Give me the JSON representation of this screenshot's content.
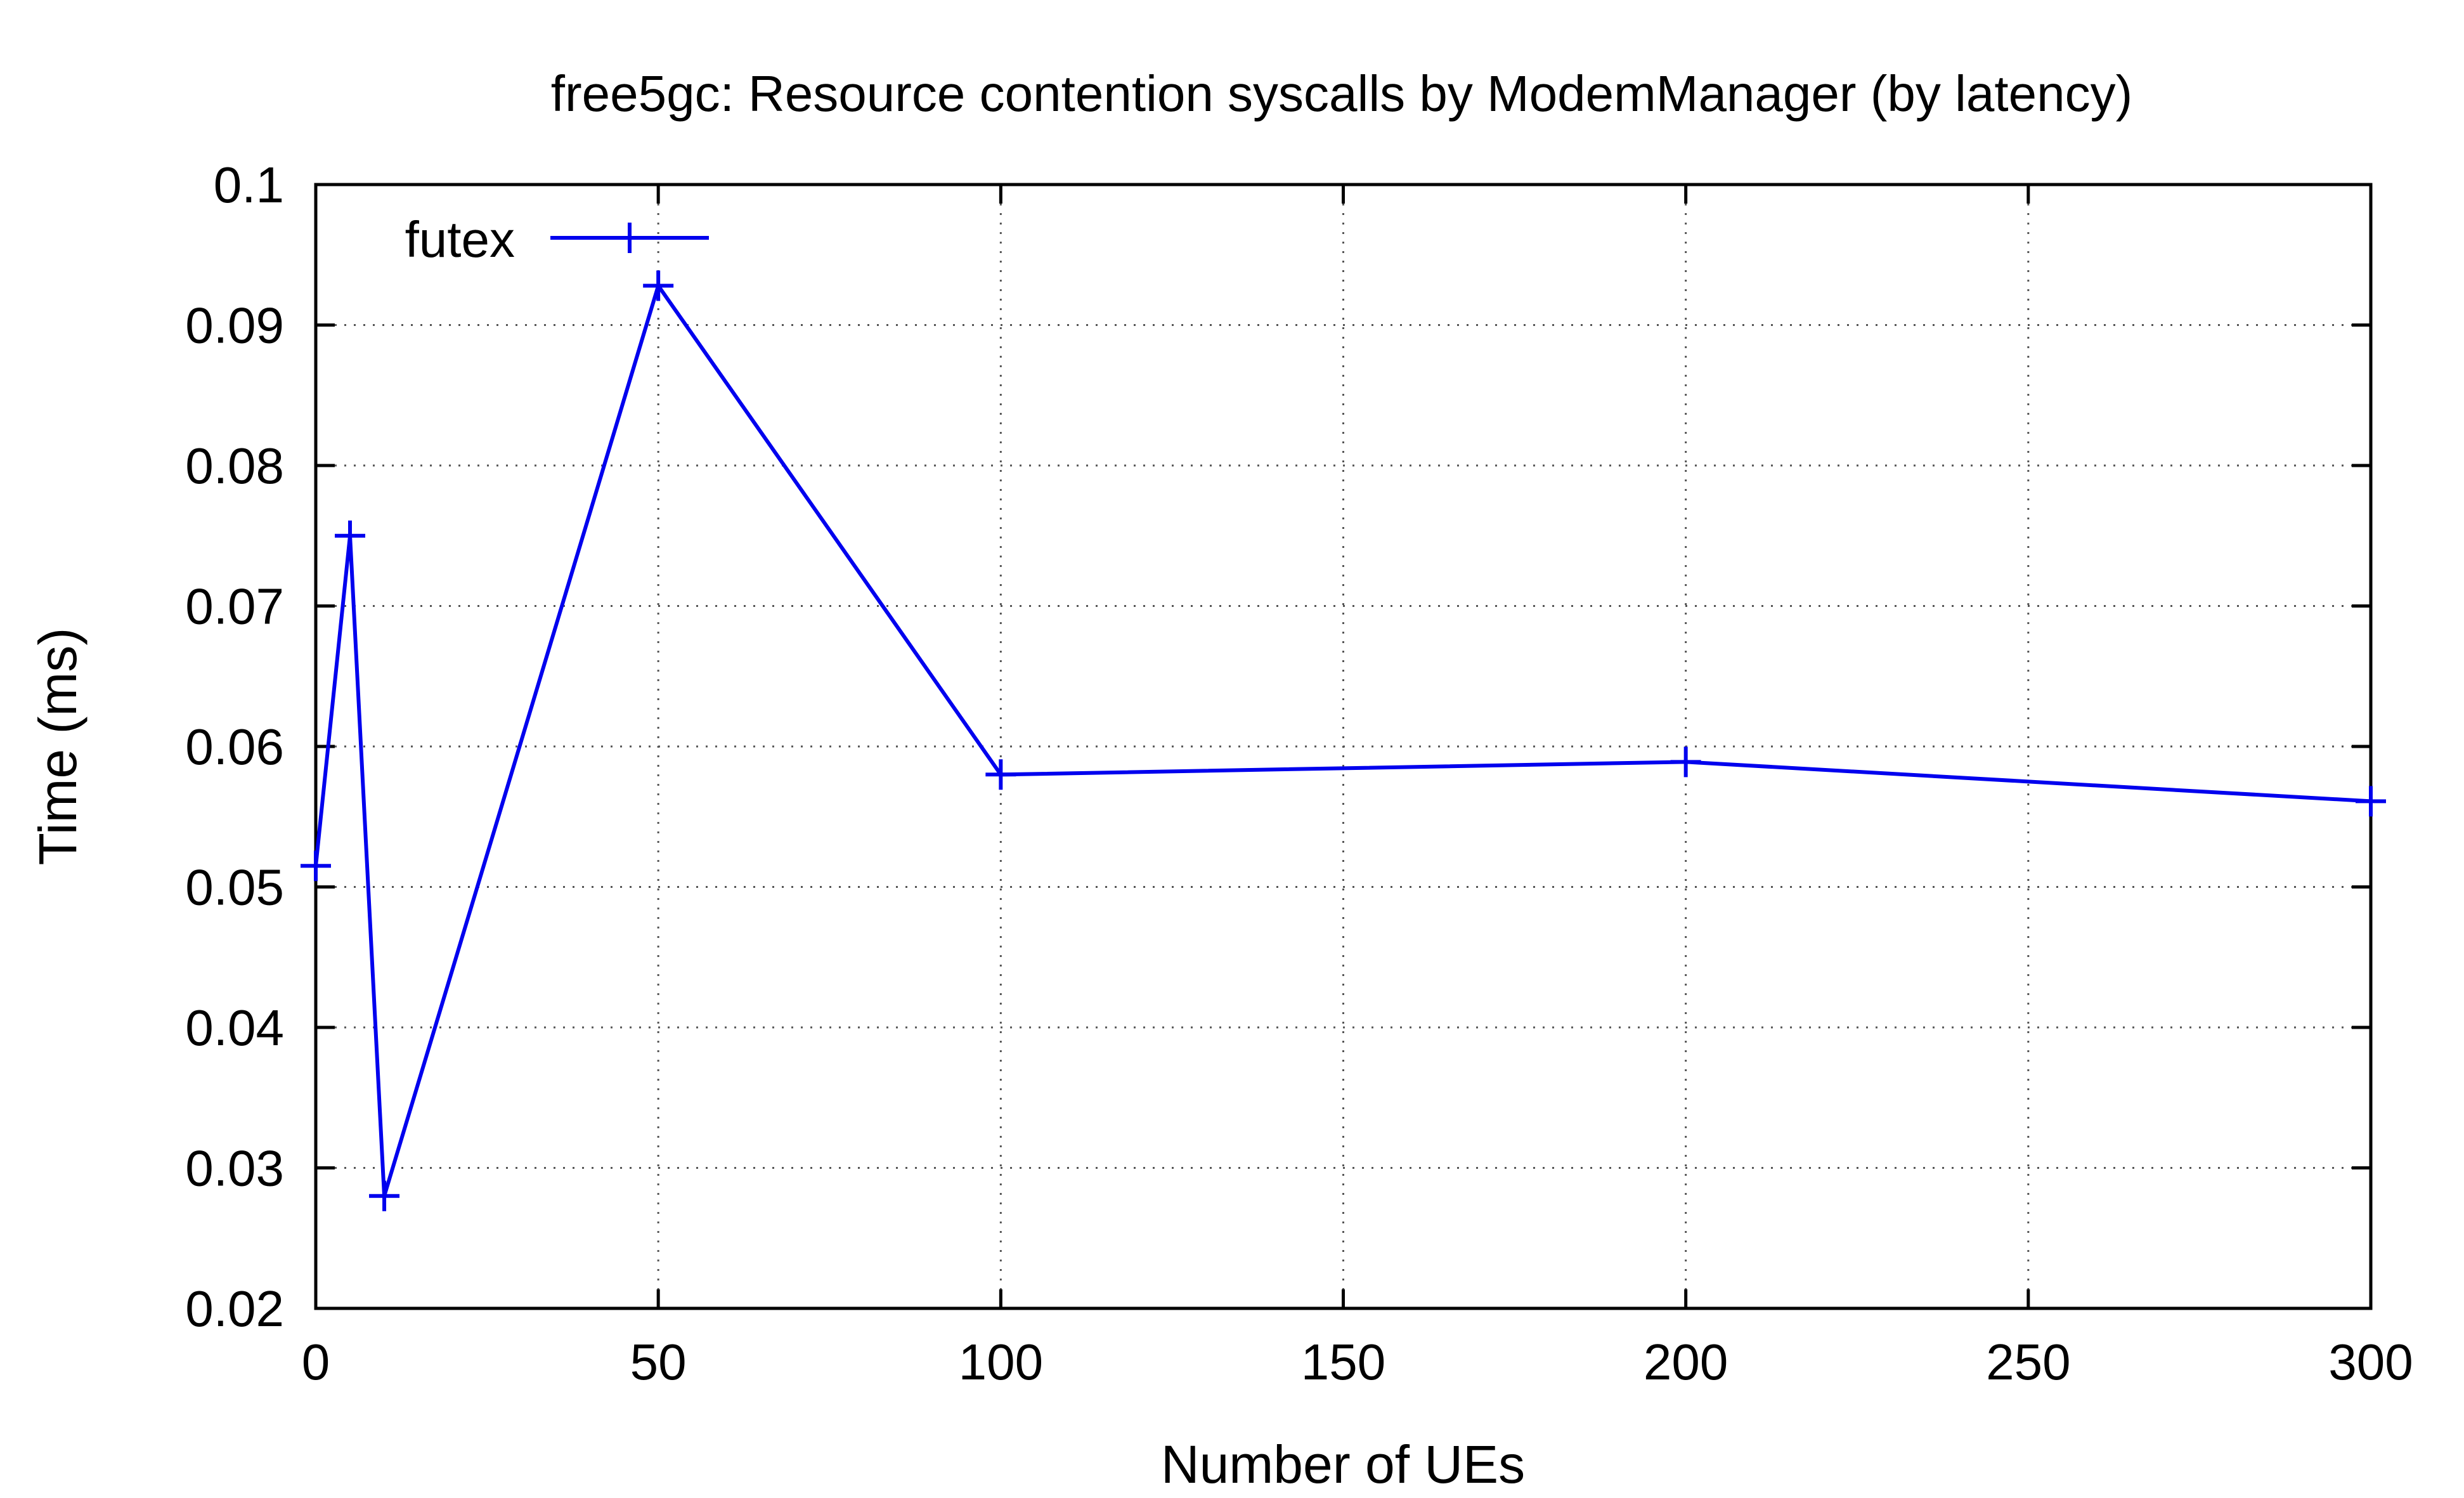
{
  "chart_data": {
    "type": "line",
    "title": "free5gc: Resource contention syscalls by ModemManager (by latency)",
    "xlabel": "Number of UEs",
    "ylabel": "Time (ms)",
    "xlim": [
      0,
      300
    ],
    "ylim": [
      0.02,
      0.1
    ],
    "x_ticks": [
      "0",
      "50",
      "100",
      "150",
      "200",
      "250",
      "300"
    ],
    "y_ticks": [
      "0.02",
      "0.03",
      "0.04",
      "0.05",
      "0.06",
      "0.07",
      "0.08",
      "0.09",
      "0.1"
    ],
    "grid": true,
    "legend_position": "top-left",
    "series": [
      {
        "name": "futex",
        "color": "#0000ee",
        "marker": "plus",
        "x": [
          0,
          5,
          10,
          50,
          100,
          200,
          300
        ],
        "y": [
          0.0515,
          0.075,
          0.028,
          0.0928,
          0.058,
          0.0589,
          0.0561
        ]
      }
    ]
  }
}
